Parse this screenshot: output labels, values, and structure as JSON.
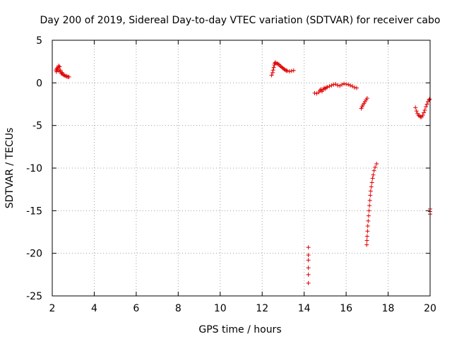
{
  "chart_data": {
    "type": "scatter",
    "title": "Day 200 of 2019, Sidereal Day-to-day VTEC variation (SDTVAR) for receiver cabo",
    "xlabel": "GPS time / hours",
    "ylabel": "SDTVAR / TECUs",
    "xlim": [
      2,
      20
    ],
    "ylim": [
      -25,
      5
    ],
    "grid": true,
    "marker": "+",
    "color": "#e00000",
    "xticks": [
      2,
      4,
      6,
      8,
      10,
      12,
      14,
      16,
      18,
      20
    ],
    "yticks": [
      -25,
      -20,
      -15,
      -10,
      -5,
      0,
      5
    ],
    "xtick_labels": [
      "2",
      "4",
      "6",
      "8",
      "10",
      "12",
      "14",
      "16",
      "18",
      "20"
    ],
    "ytick_labels": [
      "-25",
      "-20",
      "-15",
      "-10",
      "-5",
      "0",
      "5"
    ],
    "series": [
      {
        "name": "SDTVAR",
        "points": [
          [
            2.17,
            1.5
          ],
          [
            2.2,
            1.3
          ],
          [
            2.22,
            1.7
          ],
          [
            2.25,
            1.6
          ],
          [
            2.28,
            1.8
          ],
          [
            2.3,
            2.0
          ],
          [
            2.32,
            1.4
          ],
          [
            2.35,
            1.9
          ],
          [
            2.38,
            1.5
          ],
          [
            2.4,
            1.3
          ],
          [
            2.43,
            1.1
          ],
          [
            2.47,
            1.2
          ],
          [
            2.5,
            1.0
          ],
          [
            2.55,
            0.9
          ],
          [
            2.6,
            0.85
          ],
          [
            2.65,
            0.8
          ],
          [
            2.7,
            0.75
          ],
          [
            2.75,
            0.7
          ],
          [
            2.8,
            0.7
          ],
          [
            12.45,
            0.9
          ],
          [
            12.5,
            1.2
          ],
          [
            12.52,
            1.5
          ],
          [
            12.55,
            1.8
          ],
          [
            12.58,
            2.1
          ],
          [
            12.6,
            2.3
          ],
          [
            12.63,
            2.4
          ],
          [
            12.7,
            2.3
          ],
          [
            12.75,
            2.2
          ],
          [
            12.8,
            2.15
          ],
          [
            12.85,
            2.0
          ],
          [
            12.9,
            1.9
          ],
          [
            12.95,
            1.8
          ],
          [
            13.0,
            1.7
          ],
          [
            13.05,
            1.6
          ],
          [
            13.1,
            1.5
          ],
          [
            13.15,
            1.45
          ],
          [
            13.2,
            1.4
          ],
          [
            13.3,
            1.35
          ],
          [
            13.4,
            1.4
          ],
          [
            13.5,
            1.45
          ],
          [
            14.2,
            -19.3
          ],
          [
            14.2,
            -20.2
          ],
          [
            14.2,
            -20.8
          ],
          [
            14.2,
            -21.7
          ],
          [
            14.2,
            -22.5
          ],
          [
            14.2,
            -23.5
          ],
          [
            14.5,
            -1.2
          ],
          [
            14.6,
            -1.25
          ],
          [
            14.7,
            -1.1
          ],
          [
            14.75,
            -0.9
          ],
          [
            14.8,
            -0.75
          ],
          [
            14.85,
            -1.0
          ],
          [
            14.9,
            -0.8
          ],
          [
            14.95,
            -0.6
          ],
          [
            15.0,
            -0.7
          ],
          [
            15.05,
            -0.55
          ],
          [
            15.1,
            -0.5
          ],
          [
            15.2,
            -0.4
          ],
          [
            15.3,
            -0.3
          ],
          [
            15.4,
            -0.2
          ],
          [
            15.5,
            -0.15
          ],
          [
            15.6,
            -0.3
          ],
          [
            15.7,
            -0.35
          ],
          [
            15.8,
            -0.2
          ],
          [
            15.9,
            -0.1
          ],
          [
            16.0,
            -0.15
          ],
          [
            16.1,
            -0.2
          ],
          [
            16.2,
            -0.3
          ],
          [
            16.3,
            -0.4
          ],
          [
            16.4,
            -0.55
          ],
          [
            16.5,
            -0.6
          ],
          [
            16.72,
            -3.0
          ],
          [
            16.76,
            -2.8
          ],
          [
            16.8,
            -2.6
          ],
          [
            16.85,
            -2.4
          ],
          [
            16.9,
            -2.2
          ],
          [
            16.95,
            -2.0
          ],
          [
            17.0,
            -1.8
          ],
          [
            16.98,
            -19.0
          ],
          [
            16.99,
            -18.5
          ],
          [
            17.0,
            -18.0
          ],
          [
            17.02,
            -17.4
          ],
          [
            17.03,
            -16.8
          ],
          [
            17.05,
            -16.2
          ],
          [
            17.07,
            -15.6
          ],
          [
            17.09,
            -15.0
          ],
          [
            17.11,
            -14.4
          ],
          [
            17.13,
            -13.8
          ],
          [
            17.15,
            -13.2
          ],
          [
            17.17,
            -12.7
          ],
          [
            17.2,
            -12.2
          ],
          [
            17.23,
            -11.7
          ],
          [
            17.26,
            -11.2
          ],
          [
            17.29,
            -10.8
          ],
          [
            17.33,
            -10.3
          ],
          [
            17.38,
            -9.9
          ],
          [
            17.45,
            -9.5
          ],
          [
            19.3,
            -2.9
          ],
          [
            19.35,
            -3.3
          ],
          [
            19.4,
            -3.6
          ],
          [
            19.45,
            -3.8
          ],
          [
            19.5,
            -3.9
          ],
          [
            19.55,
            -4.0
          ],
          [
            19.6,
            -4.0
          ],
          [
            19.65,
            -3.8
          ],
          [
            19.7,
            -3.5
          ],
          [
            19.75,
            -3.2
          ],
          [
            19.8,
            -2.8
          ],
          [
            19.85,
            -2.5
          ],
          [
            19.9,
            -2.2
          ],
          [
            19.95,
            -2.0
          ],
          [
            19.98,
            -1.9
          ],
          [
            20.0,
            -14.8
          ],
          [
            20.0,
            -15.1
          ],
          [
            20.0,
            -15.4
          ]
        ]
      }
    ]
  }
}
